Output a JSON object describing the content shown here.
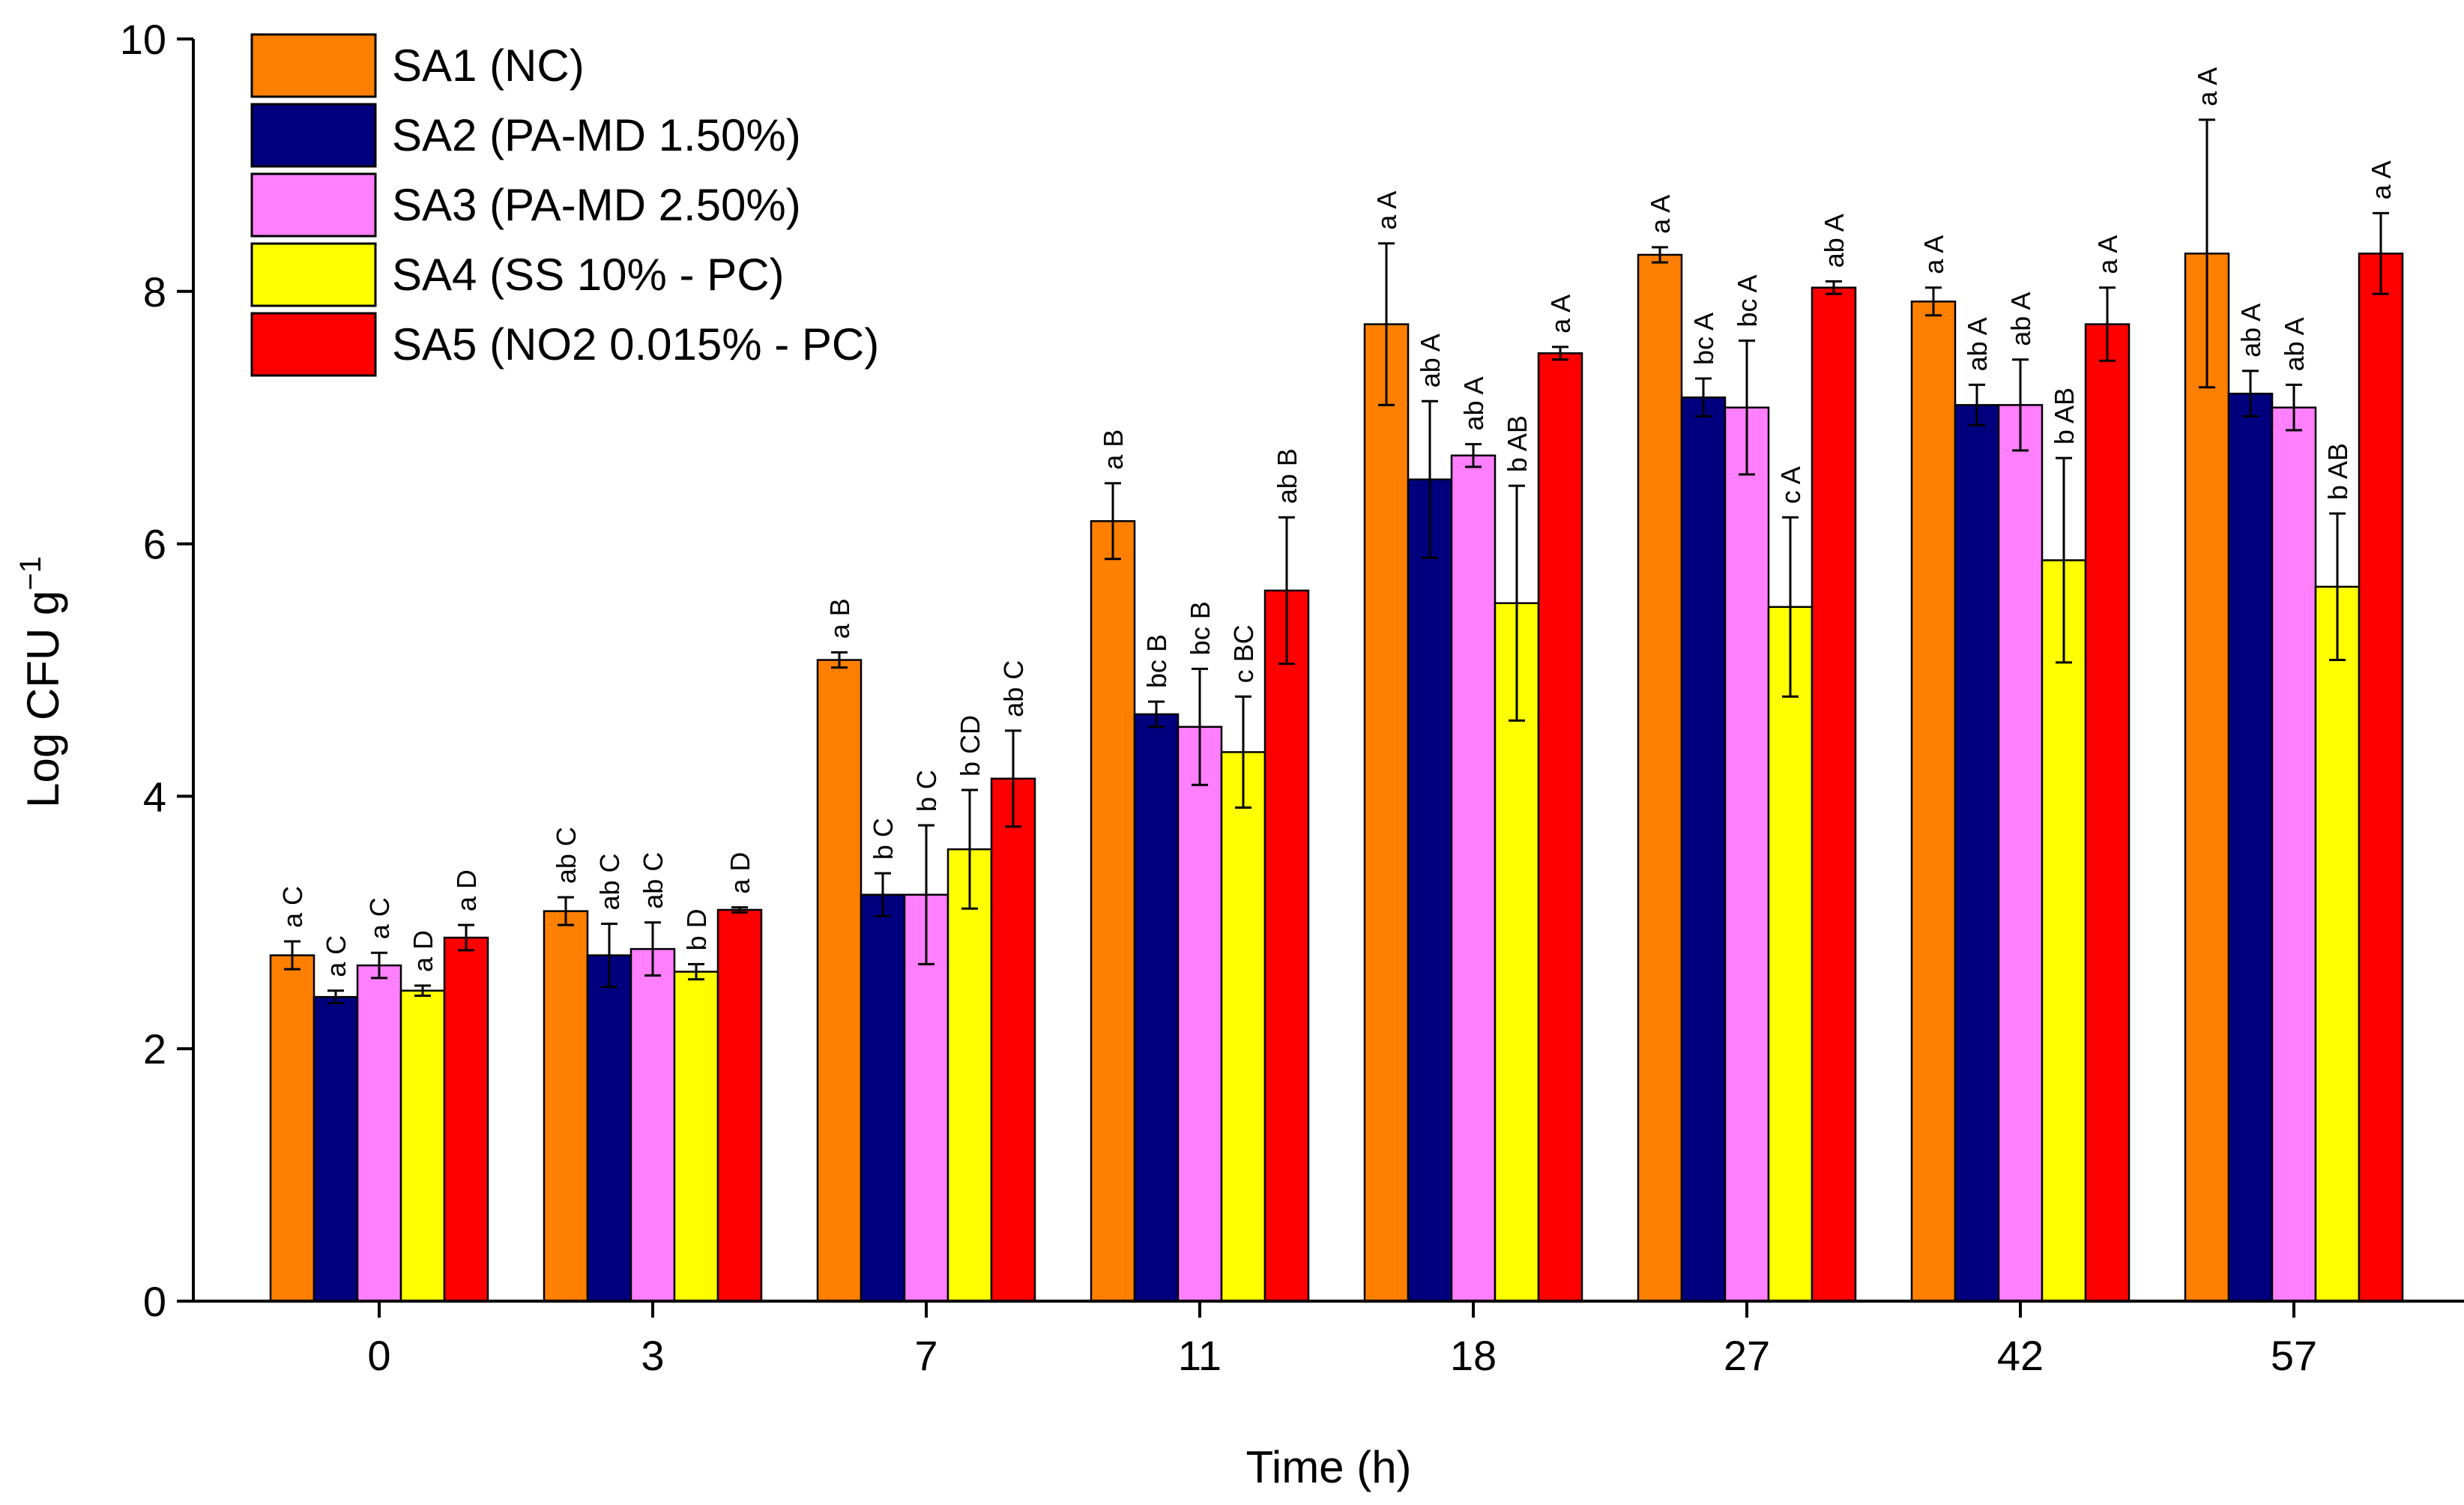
{
  "chart_data": {
    "type": "bar",
    "xlabel": "Time (h)",
    "ylabel": "Log CFU g",
    "ylabel_superscript": "−1",
    "ylim": [
      0,
      10
    ],
    "yticks": [
      "0",
      "2",
      "4",
      "6",
      "8",
      "10"
    ],
    "categories": [
      "0",
      "3",
      "7",
      "11",
      "18",
      "27",
      "42",
      "57"
    ],
    "legend_placement": "top-left",
    "grid": false,
    "series": [
      {
        "name": "SA1 (NC)",
        "color": "#FF7F00",
        "values": [
          2.74,
          3.09,
          5.08,
          6.18,
          7.74,
          8.29,
          7.92,
          8.3
        ],
        "errors": [
          0.11,
          0.11,
          0.06,
          0.3,
          0.64,
          0.06,
          0.11,
          1.06
        ],
        "labels": [
          "a C",
          "ab C",
          "a B",
          "a B",
          "a A",
          "a A",
          "a A",
          "a A"
        ]
      },
      {
        "name": "SA2 (PA-MD 1.50%)",
        "color": "#00007F",
        "values": [
          2.41,
          2.74,
          3.22,
          4.65,
          6.51,
          7.16,
          7.1,
          7.19
        ],
        "errors": [
          0.05,
          0.25,
          0.17,
          0.1,
          0.62,
          0.15,
          0.16,
          0.18
        ],
        "labels": [
          "a C",
          "ab C",
          "b C",
          "bc B",
          "ab A",
          "bc A",
          "ab A",
          "ab A"
        ]
      },
      {
        "name": "SA3 (PA-MD 2.50%)",
        "color": "#FF7FFF",
        "values": [
          2.66,
          2.79,
          3.22,
          4.55,
          6.7,
          7.08,
          7.1,
          7.08
        ],
        "errors": [
          0.1,
          0.21,
          0.55,
          0.46,
          0.09,
          0.53,
          0.36,
          0.18
        ],
        "labels": [
          "a C",
          "ab C",
          "b C",
          "bc B",
          "ab A",
          "bc A",
          "ab A",
          "ab A"
        ]
      },
      {
        "name": "SA4 (SS 10% - PC)",
        "color": "#FFFF00",
        "values": [
          2.46,
          2.61,
          3.58,
          4.35,
          5.53,
          5.5,
          5.87,
          5.66
        ],
        "errors": [
          0.04,
          0.06,
          0.47,
          0.44,
          0.93,
          0.71,
          0.81,
          0.58
        ],
        "labels": [
          "a D",
          "b D",
          "b CD",
          "c BC",
          "b AB",
          "c A",
          "b AB",
          "b AB"
        ]
      },
      {
        "name": "SA5 (NO2 0.015% - PC)",
        "color": "#FF0000",
        "values": [
          2.88,
          3.1,
          4.14,
          5.63,
          7.51,
          8.03,
          7.74,
          8.3
        ],
        "errors": [
          0.1,
          0.02,
          0.38,
          0.58,
          0.05,
          0.05,
          0.29,
          0.32
        ],
        "labels": [
          "a D",
          "a D",
          "ab C",
          "ab B",
          "a A",
          "ab A",
          "a A",
          "a A"
        ]
      }
    ]
  }
}
